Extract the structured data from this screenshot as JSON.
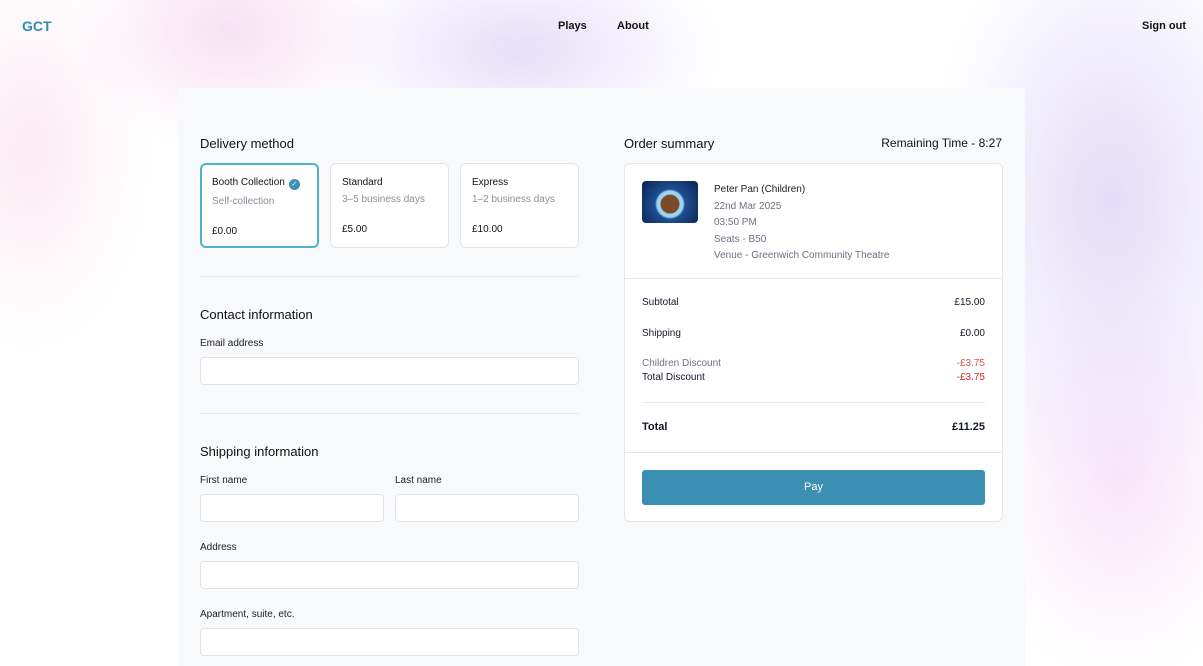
{
  "nav": {
    "logo": "GCT",
    "links": [
      "Plays",
      "About"
    ],
    "sign_out": "Sign out"
  },
  "delivery": {
    "title": "Delivery method",
    "options": [
      {
        "title": "Booth Collection",
        "subtitle": "Self-collection",
        "price": "£0.00",
        "selected": true
      },
      {
        "title": "Standard",
        "subtitle": "3–5 business days",
        "price": "£5.00",
        "selected": false
      },
      {
        "title": "Express",
        "subtitle": "1–2 business days",
        "price": "£10.00",
        "selected": false
      }
    ],
    "check_icon": "✓"
  },
  "contact": {
    "title": "Contact information",
    "email_label": "Email address",
    "email_value": ""
  },
  "shipping": {
    "title": "Shipping information",
    "first_name_label": "First name",
    "last_name_label": "Last name",
    "address_label": "Address",
    "apartment_label": "Apartment, suite, etc."
  },
  "summary": {
    "title": "Order summary",
    "remaining": "Remaining Time - 8:27",
    "item": {
      "name": "Peter Pan (Children)",
      "date": "22nd Mar 2025",
      "time": "03:50 PM",
      "seats": "Seats - B50",
      "venue": "Venue - Greenwich Community Theatre"
    },
    "subtotal_label": "Subtotal",
    "subtotal": "£15.00",
    "shipping_label": "Shipping",
    "shipping": "£0.00",
    "children_discount_label": "Children Discount",
    "children_discount": "-£3.75",
    "total_discount_label": "Total Discount",
    "total_discount": "-£3.75",
    "total_label": "Total",
    "total": "£11.25",
    "pay": "Pay"
  },
  "colors": {
    "accent": "#3a8fb3",
    "discount": "#dc2626"
  }
}
